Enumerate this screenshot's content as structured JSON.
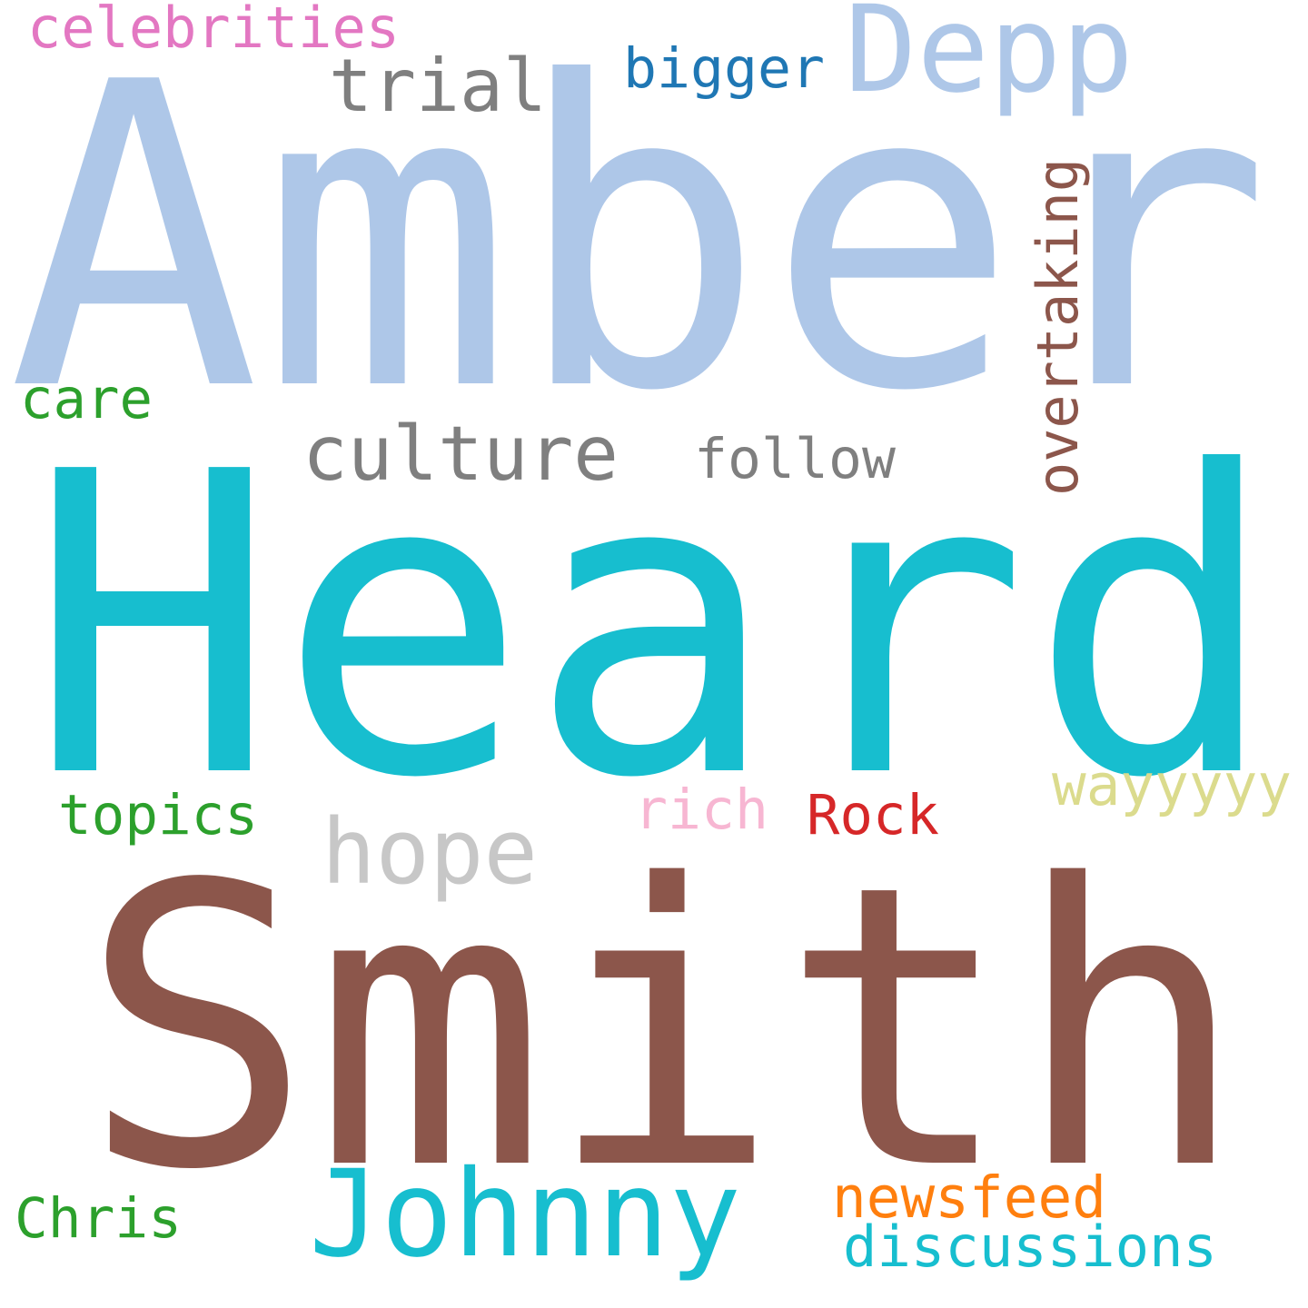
{
  "words": [
    {
      "key": "amber",
      "text": "Amber",
      "color": "#aec7e8"
    },
    {
      "key": "heard",
      "text": "Heard",
      "color": "#17becf"
    },
    {
      "key": "smith",
      "text": "Smith",
      "color": "#8c564b"
    },
    {
      "key": "depp",
      "text": "Depp",
      "color": "#aec7e8"
    },
    {
      "key": "celebrities",
      "text": "celebrities",
      "color": "#e377c2"
    },
    {
      "key": "trial",
      "text": "trial",
      "color": "#7f7f7f"
    },
    {
      "key": "bigger",
      "text": "bigger",
      "color": "#1f77b4"
    },
    {
      "key": "overtaking",
      "text": "overtaking",
      "color": "#8c564b"
    },
    {
      "key": "care",
      "text": "care",
      "color": "#2ca02c"
    },
    {
      "key": "culture",
      "text": "culture",
      "color": "#7f7f7f"
    },
    {
      "key": "follow",
      "text": "follow",
      "color": "#7f7f7f"
    },
    {
      "key": "wayyyyy",
      "text": "wayyyyy",
      "color": "#dbdb8d"
    },
    {
      "key": "topics",
      "text": "topics",
      "color": "#2ca02c"
    },
    {
      "key": "hope",
      "text": "hope",
      "color": "#c7c7c7"
    },
    {
      "key": "rich",
      "text": "rich",
      "color": "#f7b6d2"
    },
    {
      "key": "rock",
      "text": "Rock",
      "color": "#d62728"
    },
    {
      "key": "chris",
      "text": "Chris",
      "color": "#2ca02c"
    },
    {
      "key": "johnny",
      "text": "Johnny",
      "color": "#17becf"
    },
    {
      "key": "newsfeed",
      "text": "newsfeed",
      "color": "#ff7f0e"
    },
    {
      "key": "discussions",
      "text": "discussions",
      "color": "#17becf"
    }
  ]
}
